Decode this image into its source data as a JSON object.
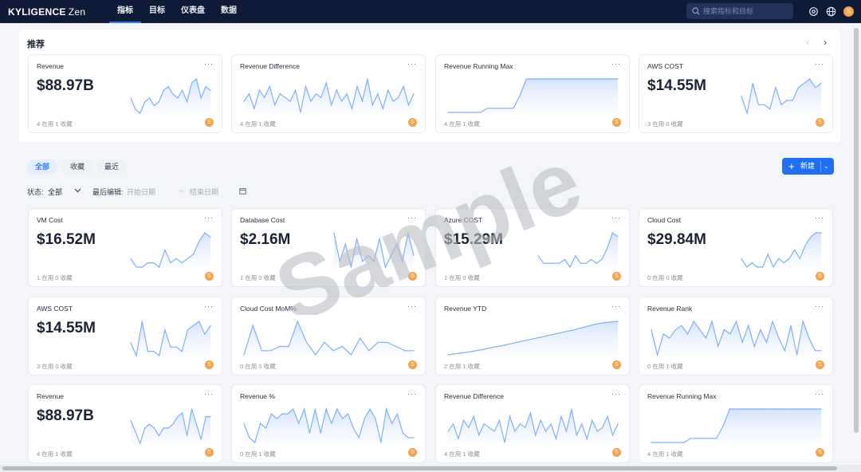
{
  "app": {
    "logo": "KYLIGENCE",
    "logo_suffix": "Zen"
  },
  "nav": [
    {
      "label": "指标",
      "active": true
    },
    {
      "label": "目标",
      "active": false
    },
    {
      "label": "仪表盘",
      "active": false
    },
    {
      "label": "数据",
      "active": false
    }
  ],
  "search": {
    "placeholder": "搜索指标和目标"
  },
  "user": {
    "avatar": "S"
  },
  "watermark": "Sample",
  "recommend": {
    "title": "推荐",
    "prev": "‹",
    "next": "›"
  },
  "filters": {
    "tabs": [
      {
        "label": "全部",
        "active": true
      },
      {
        "label": "收藏",
        "active": false
      },
      {
        "label": "最近",
        "active": false
      }
    ],
    "status_label": "状态:",
    "status_value": "全部",
    "last_edit_label": "最后编辑:",
    "start_placeholder": "开始日期",
    "date_sep": "–",
    "end_placeholder": "结束日期",
    "new_button": "新建"
  },
  "colors": {
    "accent": "#2b7ff5",
    "nav_bg": "#0f1a36",
    "spark_line": "#7fb1f5",
    "owner_badge": "#f5a34a"
  },
  "chart_data": [
    {
      "type": "line",
      "name": "Revenue",
      "value": "$88.97B",
      "stats": "4 在用 1 收藏",
      "values": [
        7,
        4,
        3,
        6,
        7,
        5,
        6,
        9,
        10,
        8,
        7,
        9,
        6,
        11,
        12,
        7,
        10,
        9
      ]
    },
    {
      "type": "line",
      "name": "Revenue Difference",
      "value": "",
      "stats": "4 在用 1 收藏",
      "values": [
        6,
        8,
        4,
        9,
        7,
        10,
        5,
        8,
        7,
        6,
        9,
        3,
        10,
        6,
        8,
        7,
        11,
        5,
        9,
        6,
        8,
        4,
        10,
        6,
        12,
        5,
        8,
        4,
        9,
        6,
        7,
        10,
        5,
        8
      ]
    },
    {
      "type": "line",
      "name": "Revenue Running Max",
      "value": "",
      "stats": "4 在用 1 收藏",
      "values": [
        2,
        2,
        2,
        2,
        2,
        2,
        3,
        3,
        3,
        3,
        3,
        6,
        10,
        10,
        10,
        10,
        10,
        10,
        10,
        10,
        10,
        10,
        10,
        10,
        10,
        10,
        10
      ]
    },
    {
      "type": "line",
      "name": "AWS COST",
      "value": "$14.55M",
      "stats": "3 在用 0 收藏",
      "values": [
        7,
        3,
        10,
        5,
        5,
        4,
        9,
        5,
        6,
        6,
        9,
        10,
        11,
        9,
        10
      ]
    },
    {
      "type": "line",
      "name": "VM Cost",
      "value": "$16.52M",
      "stats": "1 在用 0 收藏",
      "values": [
        4,
        2,
        2,
        3,
        3,
        2,
        6,
        3,
        4,
        3,
        4,
        5,
        8,
        10,
        9
      ]
    },
    {
      "type": "line",
      "name": "Database Cost",
      "value": "$2.16M",
      "stats": "1 在用 0 收藏",
      "values": [
        10,
        5,
        8,
        4,
        9,
        5,
        6,
        5,
        9,
        4,
        6,
        8,
        5,
        10,
        6
      ]
    },
    {
      "type": "line",
      "name": "Azure COST",
      "value": "$15.29M",
      "stats": "1 在用 0 收藏",
      "values": [
        4,
        2,
        2,
        2,
        2,
        3,
        1,
        4,
        2,
        2,
        3,
        2,
        3,
        6,
        10,
        9
      ]
    },
    {
      "type": "line",
      "name": "Cloud Cost",
      "value": "$29.84M",
      "stats": "0 在用 0 收藏",
      "values": [
        4,
        2,
        3,
        2,
        2,
        5,
        2,
        4,
        3,
        4,
        6,
        4,
        7,
        9,
        10,
        10
      ]
    },
    {
      "type": "line",
      "name": "AWS COST",
      "value": "$14.55M",
      "stats": "3 在用 0 收藏",
      "values": [
        5,
        2,
        10,
        3,
        3,
        2,
        8,
        4,
        4,
        3,
        8,
        9,
        10,
        7,
        9
      ]
    },
    {
      "type": "line",
      "name": "Cloud Cost MoM%",
      "value": "",
      "stats": "0 在用 0 收藏",
      "values": [
        2,
        9,
        3,
        3,
        4,
        4,
        10,
        5,
        2,
        5,
        3,
        4,
        2,
        6,
        3,
        5,
        5,
        4,
        3,
        3
      ]
    },
    {
      "type": "line",
      "name": "Revenue YTD",
      "value": "",
      "stats": "2 在用 1 收藏",
      "values": [
        1,
        1.3,
        1.6,
        2,
        2.4,
        2.9,
        3.3,
        3.8,
        4.3,
        4.8,
        5.3,
        5.8,
        6.3,
        6.8,
        7.3,
        7.9,
        8.5,
        9,
        9.3,
        9.5
      ]
    },
    {
      "type": "line",
      "name": "Revenue Rank",
      "value": "",
      "stats": "0 在用 1 收藏",
      "values": [
        8,
        2,
        7,
        6,
        8,
        9,
        7,
        10,
        8,
        6,
        10,
        4,
        8,
        7,
        10,
        5,
        9,
        4,
        8,
        5,
        10,
        6,
        3,
        9,
        2,
        10,
        6,
        3,
        3
      ]
    },
    {
      "type": "line",
      "name": "Revenue",
      "value": "$88.97B",
      "stats": "4 在用 1 收藏",
      "values": [
        8,
        5,
        2,
        6,
        7,
        6,
        4,
        6,
        6,
        7,
        9,
        10,
        4,
        11,
        7,
        3,
        9,
        9
      ]
    },
    {
      "type": "line",
      "name": "Revenue %",
      "value": "",
      "stats": "0 在用 1 收藏",
      "values": [
        6,
        3,
        2,
        6,
        5,
        8,
        7,
        8,
        8,
        9,
        6,
        9,
        4,
        9,
        4,
        9,
        6,
        9,
        7,
        8,
        5,
        3,
        7,
        9,
        7,
        2,
        9,
        6,
        8,
        4,
        3,
        3
      ]
    },
    {
      "type": "line",
      "name": "Revenue Difference",
      "value": "",
      "stats": "4 在用 1 收藏",
      "values": [
        6,
        8,
        4,
        9,
        7,
        10,
        5,
        8,
        7,
        6,
        9,
        3,
        10,
        6,
        8,
        7,
        11,
        5,
        9,
        6,
        8,
        4,
        10,
        6,
        12,
        5,
        8,
        4,
        9,
        6,
        7,
        10,
        5,
        8
      ]
    },
    {
      "type": "line",
      "name": "Revenue Running Max",
      "value": "",
      "stats": "4 在用 1 收藏",
      "values": [
        2,
        2,
        2,
        2,
        2,
        2,
        3,
        3,
        3,
        3,
        3,
        6,
        10,
        10,
        10,
        10,
        10,
        10,
        10,
        10,
        10,
        10,
        10,
        10,
        10,
        10,
        10
      ]
    }
  ]
}
